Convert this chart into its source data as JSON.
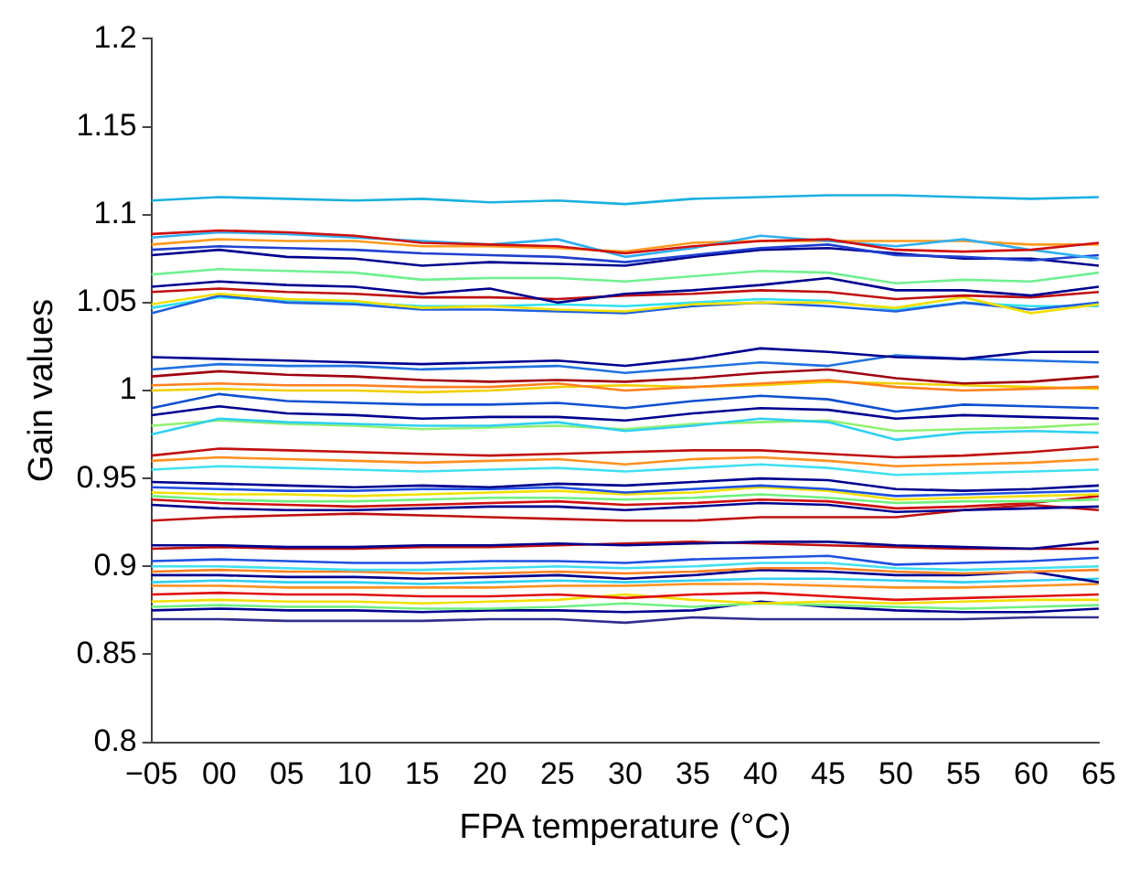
{
  "chart_data": {
    "type": "line",
    "xlabel": "FPA temperature (°C)",
    "ylabel": "Gain values",
    "categories": [
      "−05",
      "00",
      "05",
      "10",
      "15",
      "20",
      "25",
      "30",
      "35",
      "40",
      "45",
      "50",
      "55",
      "60",
      "65"
    ],
    "ylim": [
      0.8,
      1.2
    ],
    "yticks": [
      0.8,
      0.85,
      0.9,
      0.95,
      1,
      1.05,
      1.1,
      1.15,
      1.2
    ],
    "grid": false,
    "legend": false,
    "series": [
      {
        "color": "#1ab0e0",
        "values": [
          1.108,
          1.11,
          1.109,
          1.108,
          1.109,
          1.107,
          1.108,
          1.106,
          1.109,
          1.11,
          1.111,
          1.111,
          1.11,
          1.109,
          1.11
        ]
      },
      {
        "color": "#d01010",
        "values": [
          1.089,
          1.091,
          1.09,
          1.088,
          1.084,
          1.083,
          1.082,
          1.078,
          1.082,
          1.085,
          1.086,
          1.08,
          1.079,
          1.08,
          1.084
        ]
      },
      {
        "color": "#30b0f0",
        "values": [
          1.087,
          1.09,
          1.089,
          1.087,
          1.085,
          1.083,
          1.086,
          1.076,
          1.081,
          1.088,
          1.085,
          1.082,
          1.086,
          1.08,
          1.075
        ]
      },
      {
        "color": "#ff9a20",
        "values": [
          1.083,
          1.086,
          1.085,
          1.085,
          1.082,
          1.082,
          1.081,
          1.079,
          1.084,
          1.085,
          1.085,
          1.085,
          1.085,
          1.083,
          1.083
        ]
      },
      {
        "color": "#2040d0",
        "values": [
          1.08,
          1.082,
          1.081,
          1.08,
          1.078,
          1.077,
          1.076,
          1.073,
          1.077,
          1.081,
          1.083,
          1.077,
          1.076,
          1.074,
          1.077
        ]
      },
      {
        "color": "#00008f",
        "values": [
          1.077,
          1.08,
          1.076,
          1.075,
          1.071,
          1.073,
          1.072,
          1.071,
          1.076,
          1.08,
          1.081,
          1.078,
          1.075,
          1.075,
          1.071
        ]
      },
      {
        "color": "#70f090",
        "values": [
          1.066,
          1.069,
          1.068,
          1.067,
          1.063,
          1.064,
          1.064,
          1.062,
          1.065,
          1.068,
          1.067,
          1.061,
          1.063,
          1.062,
          1.067
        ]
      },
      {
        "color": "#000090",
        "values": [
          1.059,
          1.062,
          1.06,
          1.059,
          1.055,
          1.058,
          1.05,
          1.055,
          1.057,
          1.06,
          1.064,
          1.057,
          1.057,
          1.054,
          1.059
        ]
      },
      {
        "color": "#c01010",
        "values": [
          1.056,
          1.058,
          1.056,
          1.055,
          1.053,
          1.053,
          1.052,
          1.054,
          1.055,
          1.057,
          1.056,
          1.052,
          1.054,
          1.053,
          1.056
        ]
      },
      {
        "color": "#f0e000",
        "values": [
          1.049,
          1.055,
          1.052,
          1.051,
          1.047,
          1.048,
          1.046,
          1.045,
          1.049,
          1.05,
          1.05,
          1.047,
          1.053,
          1.044,
          1.049
        ]
      },
      {
        "color": "#2060e0",
        "values": [
          1.044,
          1.054,
          1.05,
          1.049,
          1.046,
          1.046,
          1.045,
          1.044,
          1.048,
          1.05,
          1.048,
          1.045,
          1.05,
          1.046,
          1.05
        ]
      },
      {
        "color": "#30e0f0",
        "values": [
          1.047,
          1.053,
          1.051,
          1.05,
          1.048,
          1.048,
          1.049,
          1.048,
          1.05,
          1.052,
          1.051,
          1.046,
          1.05,
          1.048,
          1.048
        ]
      },
      {
        "color": "#000090",
        "values": [
          1.019,
          1.018,
          1.017,
          1.016,
          1.015,
          1.016,
          1.017,
          1.014,
          1.018,
          1.024,
          1.022,
          1.019,
          1.018,
          1.022,
          1.022
        ]
      },
      {
        "color": "#2070e0",
        "values": [
          1.012,
          1.015,
          1.014,
          1.014,
          1.012,
          1.013,
          1.014,
          1.01,
          1.013,
          1.016,
          1.014,
          1.02,
          1.018,
          1.017,
          1.016
        ]
      },
      {
        "color": "#a00010",
        "values": [
          1.008,
          1.011,
          1.009,
          1.008,
          1.006,
          1.005,
          1.006,
          1.005,
          1.007,
          1.01,
          1.012,
          1.007,
          1.004,
          1.005,
          1.008
        ]
      },
      {
        "color": "#ff8020",
        "values": [
          1.003,
          1.004,
          1.003,
          1.003,
          1.002,
          1.002,
          1.004,
          1.0,
          1.002,
          1.004,
          1.006,
          1.002,
          1.0,
          1.001,
          1.002
        ]
      },
      {
        "color": "#f0d000",
        "values": [
          1.0,
          1.001,
          1.0,
          1.0,
          0.999,
          1.0,
          1.002,
          1.003,
          1.002,
          1.003,
          1.005,
          1.004,
          1.003,
          1.002,
          1.001
        ]
      },
      {
        "color": "#1050d0",
        "values": [
          0.99,
          0.998,
          0.994,
          0.993,
          0.992,
          0.992,
          0.993,
          0.99,
          0.994,
          0.997,
          0.995,
          0.988,
          0.992,
          0.991,
          0.99
        ]
      },
      {
        "color": "#000090",
        "values": [
          0.986,
          0.991,
          0.987,
          0.986,
          0.984,
          0.985,
          0.985,
          0.983,
          0.987,
          0.99,
          0.989,
          0.984,
          0.986,
          0.985,
          0.984
        ]
      },
      {
        "color": "#30d0f0",
        "values": [
          0.975,
          0.984,
          0.982,
          0.981,
          0.98,
          0.98,
          0.982,
          0.977,
          0.98,
          0.984,
          0.982,
          0.972,
          0.976,
          0.977,
          0.976
        ]
      },
      {
        "color": "#90f070",
        "values": [
          0.98,
          0.983,
          0.981,
          0.98,
          0.978,
          0.979,
          0.98,
          0.978,
          0.981,
          0.982,
          0.983,
          0.977,
          0.978,
          0.979,
          0.981
        ]
      },
      {
        "color": "#c01010",
        "values": [
          0.963,
          0.967,
          0.966,
          0.965,
          0.964,
          0.963,
          0.964,
          0.965,
          0.966,
          0.966,
          0.964,
          0.962,
          0.963,
          0.965,
          0.968
        ]
      },
      {
        "color": "#ff9020",
        "values": [
          0.96,
          0.962,
          0.961,
          0.96,
          0.959,
          0.96,
          0.961,
          0.958,
          0.961,
          0.962,
          0.96,
          0.957,
          0.958,
          0.959,
          0.961
        ]
      },
      {
        "color": "#40e0f0",
        "values": [
          0.955,
          0.957,
          0.956,
          0.955,
          0.954,
          0.955,
          0.956,
          0.954,
          0.956,
          0.958,
          0.956,
          0.952,
          0.953,
          0.954,
          0.955
        ]
      },
      {
        "color": "#00008f",
        "values": [
          0.948,
          0.947,
          0.946,
          0.945,
          0.946,
          0.945,
          0.947,
          0.946,
          0.948,
          0.95,
          0.949,
          0.944,
          0.943,
          0.944,
          0.946
        ]
      },
      {
        "color": "#2050e0",
        "values": [
          0.945,
          0.944,
          0.943,
          0.943,
          0.944,
          0.944,
          0.945,
          0.942,
          0.944,
          0.946,
          0.944,
          0.94,
          0.941,
          0.942,
          0.943
        ]
      },
      {
        "color": "#f0e000",
        "values": [
          0.942,
          0.941,
          0.941,
          0.94,
          0.941,
          0.942,
          0.943,
          0.941,
          0.942,
          0.945,
          0.943,
          0.938,
          0.939,
          0.94,
          0.941
        ]
      },
      {
        "color": "#70f080",
        "values": [
          0.94,
          0.938,
          0.937,
          0.937,
          0.938,
          0.939,
          0.939,
          0.938,
          0.939,
          0.941,
          0.939,
          0.936,
          0.937,
          0.937,
          0.938
        ]
      },
      {
        "color": "#d01010",
        "values": [
          0.938,
          0.936,
          0.935,
          0.934,
          0.935,
          0.936,
          0.937,
          0.935,
          0.936,
          0.938,
          0.937,
          0.933,
          0.934,
          0.936,
          0.94
        ]
      },
      {
        "color": "#00008f",
        "values": [
          0.935,
          0.933,
          0.932,
          0.932,
          0.933,
          0.934,
          0.934,
          0.932,
          0.934,
          0.936,
          0.935,
          0.931,
          0.932,
          0.933,
          0.934
        ]
      },
      {
        "color": "#c01010",
        "values": [
          0.926,
          0.928,
          0.929,
          0.93,
          0.929,
          0.928,
          0.927,
          0.926,
          0.926,
          0.928,
          0.928,
          0.928,
          0.932,
          0.935,
          0.932
        ]
      },
      {
        "color": "#00008f",
        "values": [
          0.912,
          0.912,
          0.911,
          0.911,
          0.912,
          0.912,
          0.913,
          0.912,
          0.913,
          0.914,
          0.914,
          0.912,
          0.911,
          0.91,
          0.914
        ]
      },
      {
        "color": "#c01010",
        "values": [
          0.91,
          0.911,
          0.91,
          0.91,
          0.911,
          0.911,
          0.912,
          0.913,
          0.914,
          0.913,
          0.912,
          0.911,
          0.91,
          0.91,
          0.91
        ]
      },
      {
        "color": "#2050e0",
        "values": [
          0.903,
          0.904,
          0.903,
          0.902,
          0.902,
          0.903,
          0.903,
          0.902,
          0.904,
          0.905,
          0.906,
          0.901,
          0.902,
          0.903,
          0.905
        ]
      },
      {
        "color": "#40e0f0",
        "values": [
          0.9,
          0.9,
          0.899,
          0.898,
          0.898,
          0.899,
          0.9,
          0.899,
          0.9,
          0.902,
          0.902,
          0.899,
          0.898,
          0.899,
          0.9
        ]
      },
      {
        "color": "#ff8020",
        "values": [
          0.897,
          0.898,
          0.897,
          0.897,
          0.896,
          0.896,
          0.897,
          0.896,
          0.897,
          0.899,
          0.899,
          0.897,
          0.896,
          0.897,
          0.898
        ]
      },
      {
        "color": "#00008f",
        "values": [
          0.895,
          0.895,
          0.894,
          0.894,
          0.893,
          0.894,
          0.895,
          0.893,
          0.895,
          0.898,
          0.897,
          0.895,
          0.895,
          0.897,
          0.891
        ]
      },
      {
        "color": "#30d0f0",
        "values": [
          0.891,
          0.892,
          0.891,
          0.891,
          0.89,
          0.891,
          0.892,
          0.891,
          0.892,
          0.893,
          0.893,
          0.892,
          0.891,
          0.892,
          0.893
        ]
      },
      {
        "color": "#ff9020",
        "values": [
          0.889,
          0.889,
          0.888,
          0.888,
          0.888,
          0.888,
          0.889,
          0.889,
          0.89,
          0.89,
          0.889,
          0.888,
          0.888,
          0.889,
          0.89
        ]
      },
      {
        "color": "#e01010",
        "values": [
          0.884,
          0.885,
          0.884,
          0.884,
          0.883,
          0.883,
          0.884,
          0.882,
          0.884,
          0.885,
          0.883,
          0.881,
          0.882,
          0.883,
          0.884
        ]
      },
      {
        "color": "#f0e000",
        "values": [
          0.88,
          0.881,
          0.88,
          0.88,
          0.879,
          0.88,
          0.881,
          0.884,
          0.881,
          0.879,
          0.88,
          0.879,
          0.88,
          0.881,
          0.881
        ]
      },
      {
        "color": "#70f080",
        "values": [
          0.877,
          0.878,
          0.877,
          0.877,
          0.876,
          0.876,
          0.877,
          0.879,
          0.877,
          0.879,
          0.878,
          0.877,
          0.876,
          0.877,
          0.878
        ]
      },
      {
        "color": "#000090",
        "values": [
          0.875,
          0.876,
          0.875,
          0.875,
          0.874,
          0.875,
          0.875,
          0.874,
          0.875,
          0.88,
          0.877,
          0.875,
          0.874,
          0.874,
          0.876
        ]
      },
      {
        "color": "#303090",
        "values": [
          0.87,
          0.87,
          0.869,
          0.869,
          0.869,
          0.87,
          0.87,
          0.868,
          0.871,
          0.87,
          0.87,
          0.87,
          0.87,
          0.871,
          0.871
        ]
      }
    ]
  }
}
